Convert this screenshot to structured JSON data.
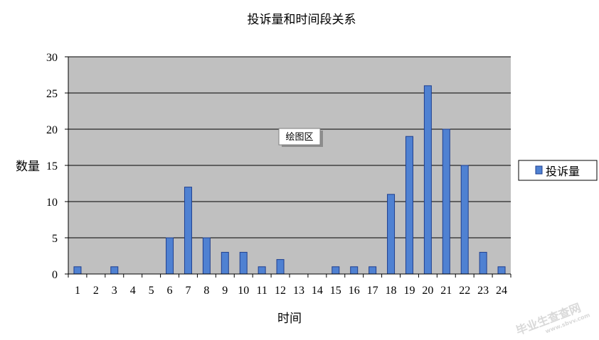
{
  "chart_data": {
    "type": "bar",
    "title": "投诉量和时间段关系",
    "xlabel": "时间",
    "ylabel": "数量",
    "categories": [
      "1",
      "2",
      "3",
      "4",
      "5",
      "6",
      "7",
      "8",
      "9",
      "10",
      "11",
      "12",
      "13",
      "14",
      "15",
      "16",
      "17",
      "18",
      "19",
      "20",
      "21",
      "22",
      "23",
      "24"
    ],
    "series": [
      {
        "name": "投诉量",
        "values": [
          1,
          0,
          1,
          0,
          0,
          5,
          12,
          5,
          3,
          3,
          1,
          2,
          0,
          0,
          1,
          1,
          1,
          11,
          19,
          26,
          20,
          15,
          3,
          1
        ]
      }
    ],
    "ylim": [
      0,
      30
    ],
    "yticks": [
      0,
      5,
      10,
      15,
      20,
      25,
      30
    ],
    "grid": true,
    "legend_position": "right",
    "plot_area_tooltip": "绘图区",
    "colors": {
      "bar_fill": "#4f81d2",
      "bar_stroke": "#1f3f8f",
      "plot_background": "#c0c0c0",
      "gridline": "#000000"
    }
  },
  "watermark": {
    "text": "毕业生查查网",
    "subtext": "www.sbvv.com"
  }
}
